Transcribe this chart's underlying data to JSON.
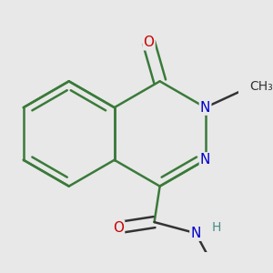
{
  "background_color": "#e8e8e8",
  "bond_color_ring": "#3a7a3a",
  "bond_color_other": "#333333",
  "bond_width": 1.8,
  "atom_colors": {
    "O": "#cc0000",
    "N": "#0000cc",
    "H": "#4a8a8a"
  },
  "font_size": 11
}
